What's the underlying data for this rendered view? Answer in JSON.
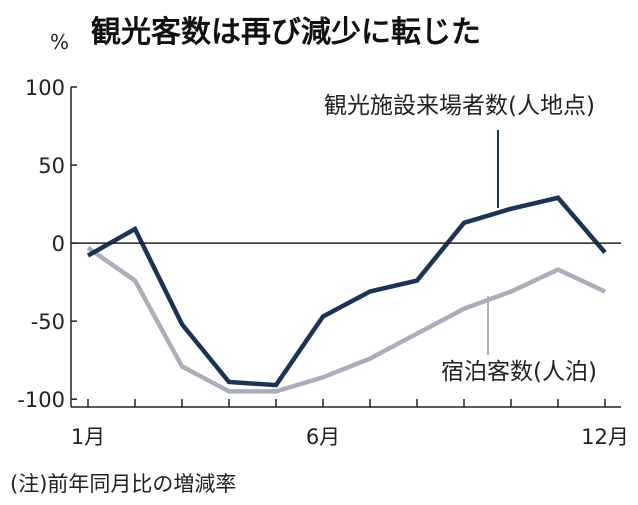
{
  "chart_data": {
    "type": "line",
    "title": "観光客数は再び減少に転じた",
    "unit": "%",
    "x": [
      1,
      2,
      3,
      4,
      5,
      6,
      7,
      8,
      9,
      10,
      11,
      12
    ],
    "x_tick_labels": [
      {
        "x": 1,
        "label": "1月"
      },
      {
        "x": 6,
        "label": "6月"
      },
      {
        "x": 12,
        "label": "12月"
      }
    ],
    "y_ticks": [
      100,
      50,
      0,
      -50,
      -100
    ],
    "y_tick_labels": [
      "100",
      "50",
      "0",
      "-50",
      "-100"
    ],
    "ylim": [
      -105,
      100
    ],
    "zero_line": true,
    "series": [
      {
        "name": "観光施設来場者数(人地点)",
        "color": "#1c3358",
        "values": [
          -8,
          9,
          -52,
          -89,
          -91,
          -47,
          -31,
          -24,
          13,
          22,
          29,
          -6
        ]
      },
      {
        "name": "宿泊客数(人泊)",
        "color": "#a9aebb",
        "values": [
          -3,
          -24,
          -79,
          -95,
          -95,
          -86,
          -74,
          -58,
          -42,
          -31,
          -17,
          -31
        ]
      }
    ],
    "note": "(注)前年同月比の増減率"
  }
}
